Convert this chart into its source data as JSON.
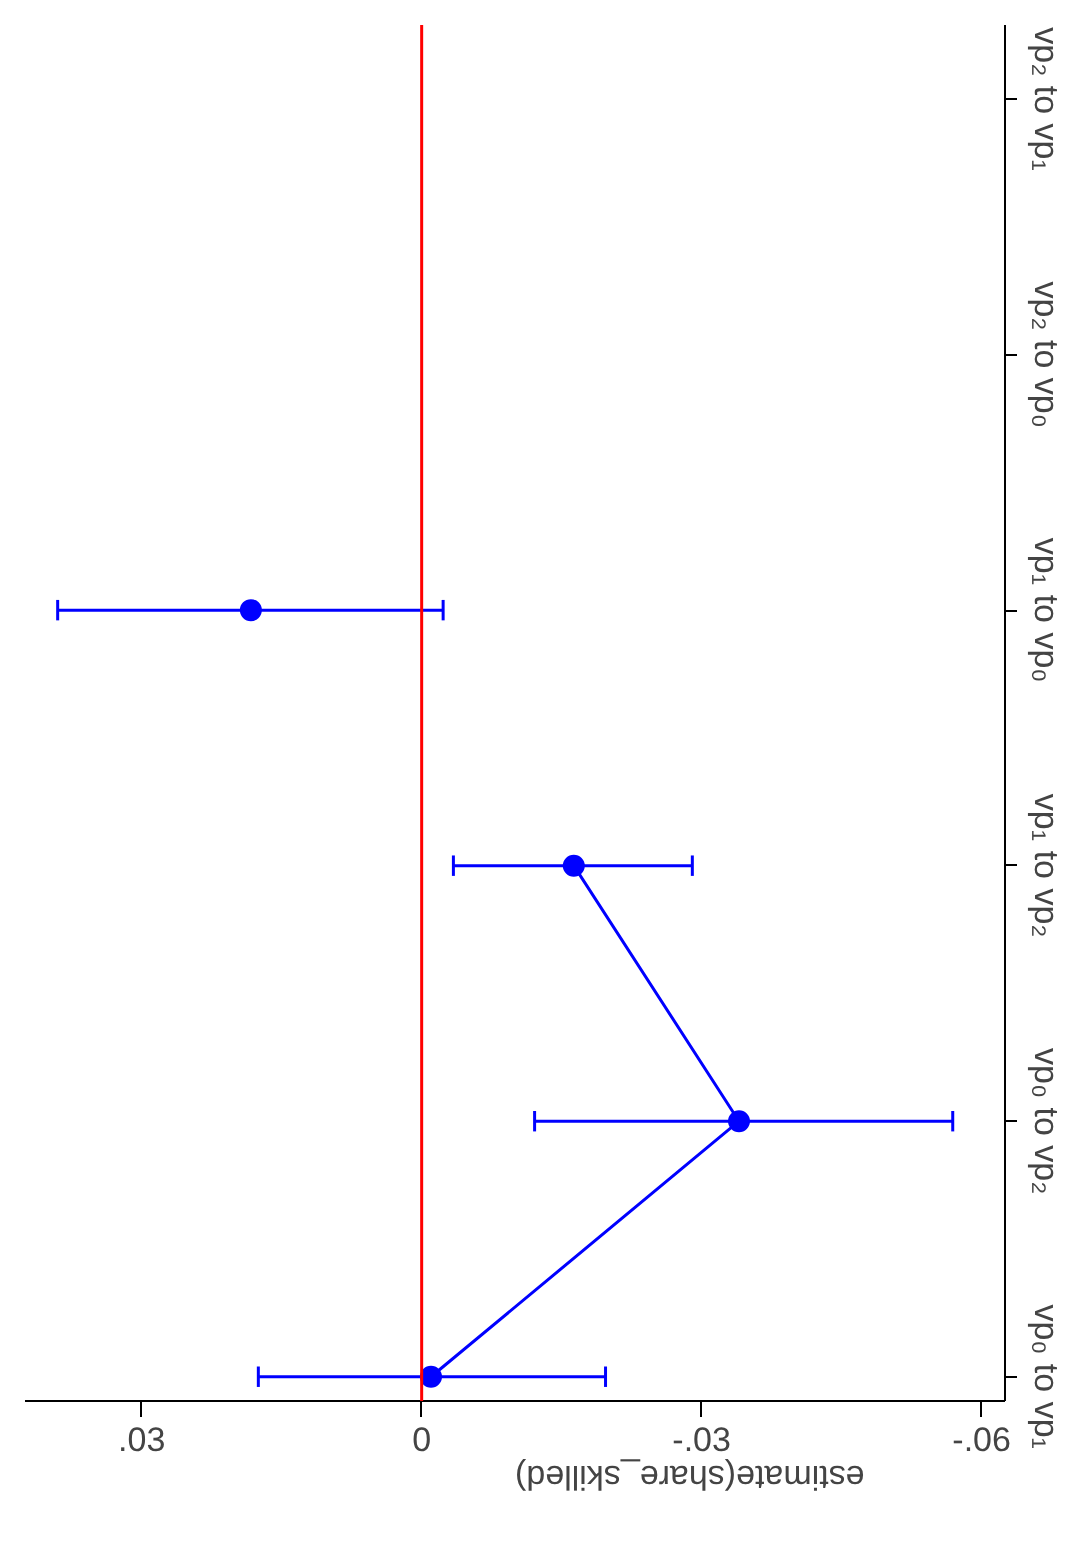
{
  "chart_data": {
    "type": "line",
    "orientation": "horizontal",
    "xlabel": "estimate(share_skilled)",
    "categories": [
      "vp₂ to vp₁",
      "vp₂ to vp₀",
      "vp₁ to vp₀",
      "vp₁ to vp₂",
      "vp₀ to vp₂",
      "vp₀ to vp₁"
    ],
    "series": [
      {
        "type": "line",
        "color": "#0000ff",
        "values": [
          null,
          null,
          null,
          -0.0163,
          -0.034,
          -0.001
        ],
        "errors": [
          null,
          null,
          null,
          [
            -0.029,
            -0.0034
          ],
          [
            -0.0569,
            -0.0121
          ],
          [
            -0.0197,
            0.0175
          ]
        ]
      },
      {
        "type": "scatter",
        "color": "#0000ff",
        "values": [
          null,
          null,
          0.0183,
          null,
          null,
          null
        ],
        "errors": [
          null,
          null,
          [
            -0.0023,
            0.039
          ],
          null,
          null,
          null
        ]
      }
    ],
    "marker": "circle",
    "xlim": [
      0.0425,
      -0.0625
    ],
    "xticks": [
      {
        "value": 0.03,
        "label": ".03"
      },
      0,
      {
        "value": -0.03,
        "label": "-.03"
      },
      {
        "value": -0.06,
        "label": "-.06"
      }
    ],
    "ref_lines": [
      {
        "axis": "x",
        "value": 0,
        "color": "#ff0000"
      }
    ],
    "grid": false
  }
}
